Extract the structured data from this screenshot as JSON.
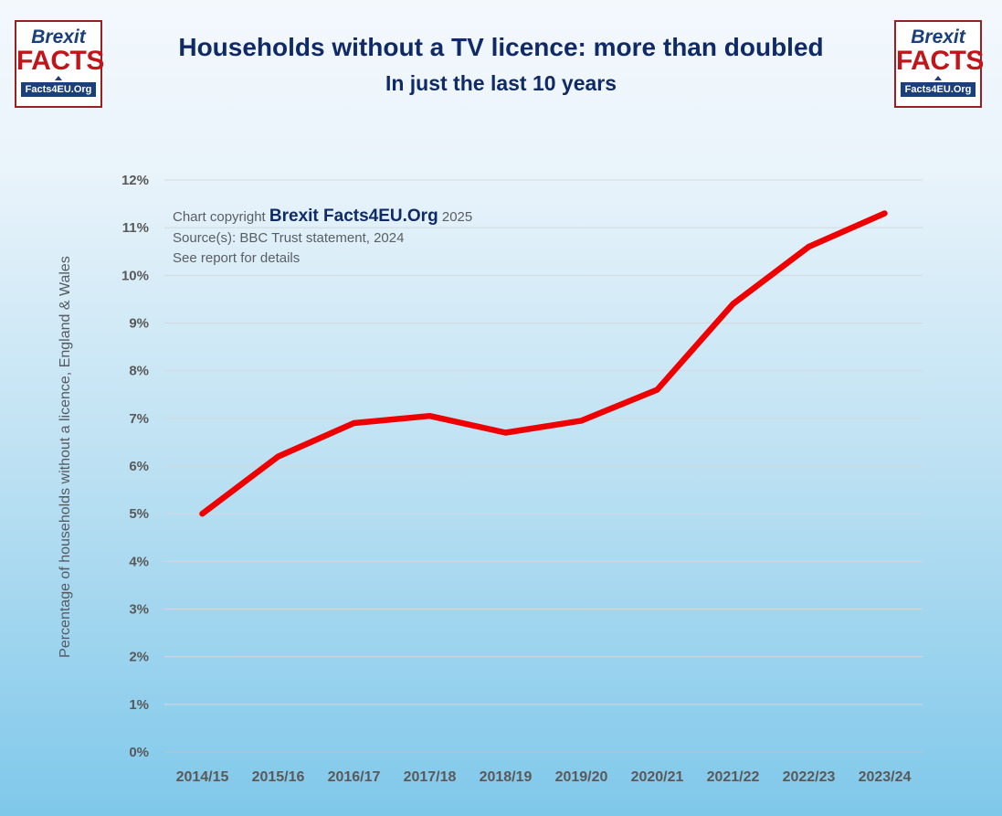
{
  "logo": {
    "top": "Brexit",
    "middle": "FACTS",
    "bottom": "Facts4EU.Org"
  },
  "title": "Households without a TV licence: more than doubled",
  "subtitle": "In just the last 10 years",
  "notes": {
    "copyright_prefix": "Chart copyright",
    "copyright_brand": "Brexit Facts4EU.Org",
    "copyright_year": "2025",
    "source": "Source(s): BBC Trust statement, 2024",
    "details": "See report for details"
  },
  "colors": {
    "line": "#ee0000",
    "grid": "#d4d8dc",
    "title": "#0f2a66",
    "tick": "#595959"
  },
  "chart_data": {
    "type": "line",
    "title": "Households without a TV licence: more than doubled",
    "subtitle": "In just the last 10 years",
    "xlabel": "",
    "ylabel": "Percentage of households without a licence, England & Wales",
    "ylim": [
      0,
      12
    ],
    "grid": true,
    "ytick_values": [
      0,
      1,
      2,
      3,
      4,
      5,
      6,
      7,
      8,
      9,
      10,
      11,
      12
    ],
    "ytick_labels": [
      "0%",
      "1%",
      "2%",
      "3%",
      "4%",
      "5%",
      "6%",
      "7%",
      "8%",
      "9%",
      "10%",
      "11%",
      "12%"
    ],
    "categories": [
      "2014/15",
      "2015/16",
      "2016/17",
      "2017/18",
      "2018/19",
      "2019/20",
      "2020/21",
      "2021/22",
      "2022/23",
      "2023/24"
    ],
    "series": [
      {
        "name": "Households without a TV licence",
        "values": [
          5.0,
          6.2,
          6.9,
          7.05,
          6.7,
          6.95,
          7.6,
          9.4,
          10.6,
          11.3
        ]
      }
    ]
  }
}
